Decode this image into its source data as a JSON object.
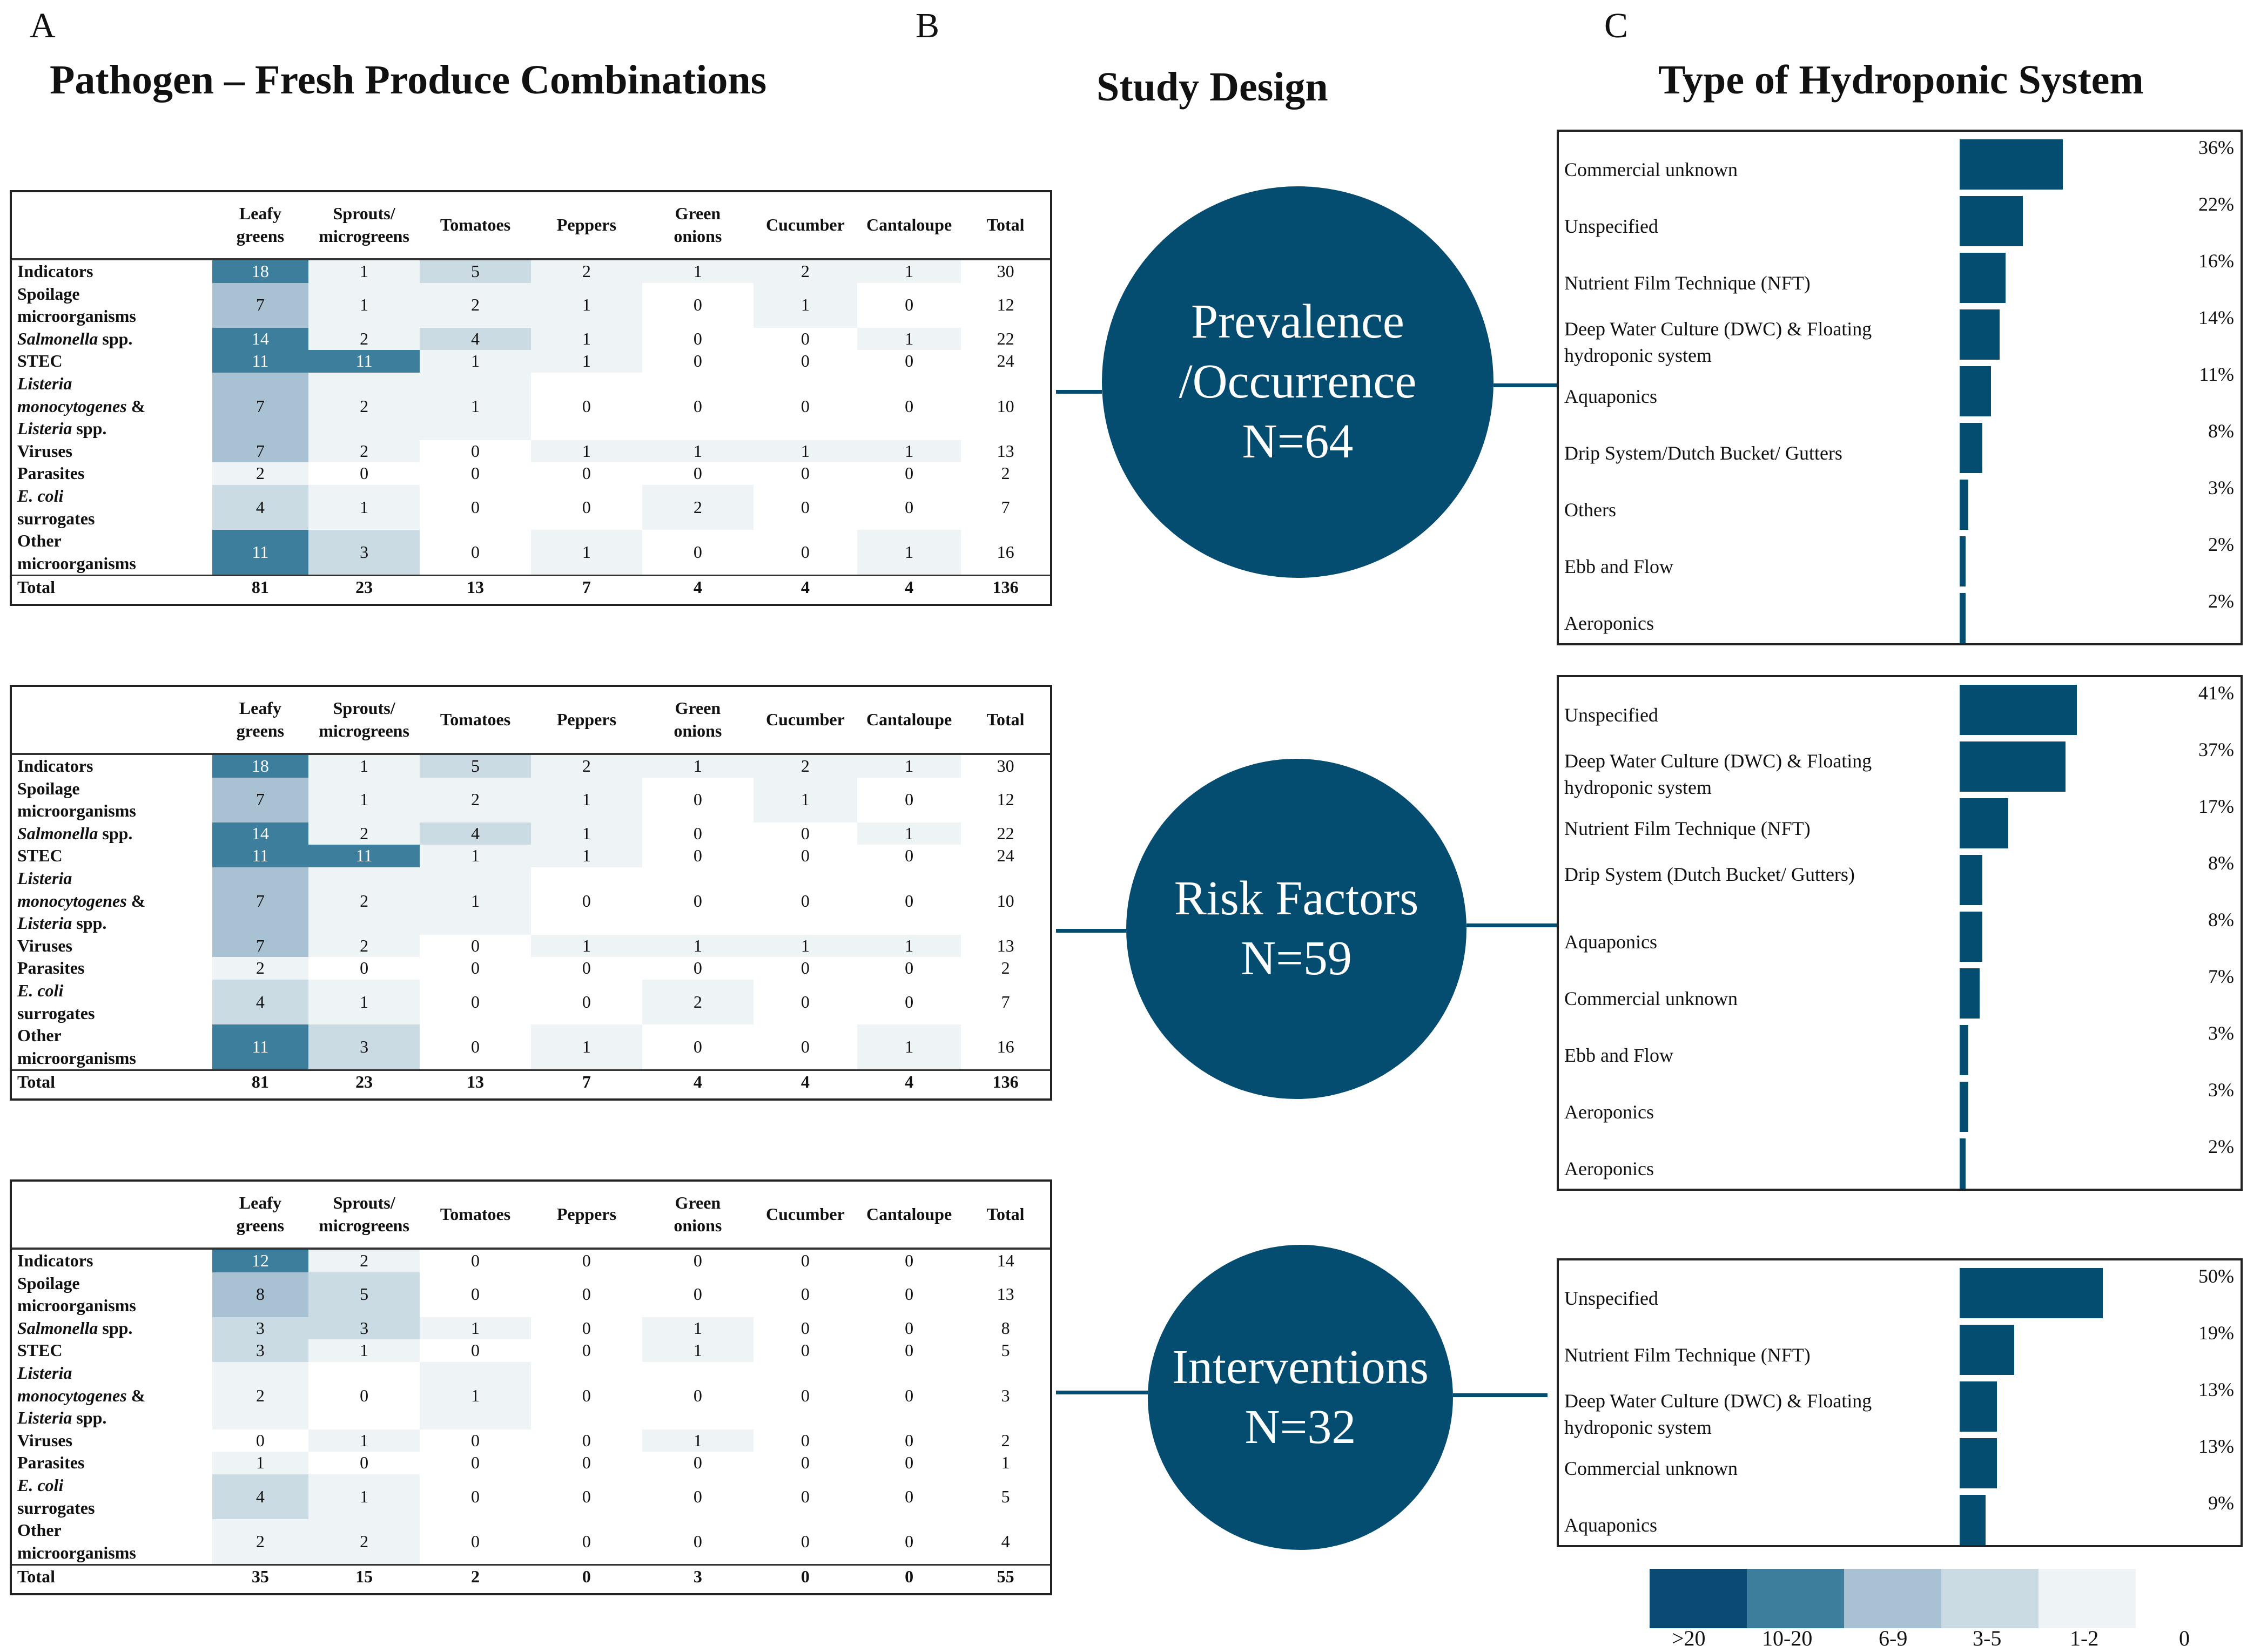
{
  "panels": {
    "a_letter": "A",
    "b_letter": "B",
    "c_letter": "C",
    "a_title": "Pathogen – Fresh Produce Combinations",
    "b_title": "Study Design",
    "c_title": "Type of Hydroponic System"
  },
  "colors": {
    "dark": "#044d70",
    "level_gt20": "#0a4a73",
    "level_10_20": "#3d7e9c",
    "level_6_9": "#a9c2d3",
    "level_3_5": "#cbdbe3",
    "level_1_2": "#eef3f6",
    "level_0": "#ffffff"
  },
  "legend": [
    ">20",
    "10-20",
    "6-9",
    "3-5",
    "1-2",
    "0"
  ],
  "chart_data": [
    {
      "type": "heatmap",
      "title": "Prevalence/Occurrence",
      "columns": [
        "Leafy greens",
        "Sprouts/ microgreens",
        "Tomatoes",
        "Peppers",
        "Green onions",
        "Cucumber",
        "Cantaloupe",
        "Total"
      ],
      "rows": [
        {
          "label": "Indicators",
          "values": [
            18,
            1,
            5,
            2,
            1,
            2,
            1,
            30
          ]
        },
        {
          "label": "Spoilage microorganisms",
          "values": [
            7,
            1,
            2,
            1,
            0,
            1,
            0,
            12
          ]
        },
        {
          "label": "Salmonella spp.",
          "values": [
            14,
            2,
            4,
            1,
            0,
            0,
            1,
            22
          ]
        },
        {
          "label": "STEC",
          "values": [
            11,
            11,
            1,
            1,
            0,
            0,
            0,
            24
          ]
        },
        {
          "label": "Listeria monocytogenes & Listeria spp.",
          "values": [
            7,
            2,
            1,
            0,
            0,
            0,
            0,
            10
          ]
        },
        {
          "label": "Viruses",
          "values": [
            7,
            2,
            0,
            1,
            1,
            1,
            1,
            13
          ]
        },
        {
          "label": "Parasites",
          "values": [
            2,
            0,
            0,
            0,
            0,
            0,
            0,
            2
          ]
        },
        {
          "label": "E. coli surrogates",
          "values": [
            4,
            1,
            0,
            0,
            2,
            0,
            0,
            7
          ]
        },
        {
          "label": "Other microorganisms",
          "values": [
            11,
            3,
            0,
            1,
            0,
            0,
            1,
            16
          ]
        },
        {
          "label": "Total",
          "values": [
            81,
            23,
            13,
            7,
            4,
            4,
            4,
            136
          ]
        }
      ]
    },
    {
      "type": "heatmap",
      "title": "Risk Factors",
      "columns": [
        "Leafy greens",
        "Sprouts/ microgreens",
        "Tomatoes",
        "Peppers",
        "Green onions",
        "Cucumber",
        "Cantaloupe",
        "Total"
      ],
      "rows": [
        {
          "label": "Indicators",
          "values": [
            18,
            1,
            5,
            2,
            1,
            2,
            1,
            30
          ]
        },
        {
          "label": "Spoilage microorganisms",
          "values": [
            7,
            1,
            2,
            1,
            0,
            1,
            0,
            12
          ]
        },
        {
          "label": "Salmonella spp.",
          "values": [
            14,
            2,
            4,
            1,
            0,
            0,
            1,
            22
          ]
        },
        {
          "label": "STEC",
          "values": [
            11,
            11,
            1,
            1,
            0,
            0,
            0,
            24
          ]
        },
        {
          "label": "Listeria monocytogenes & Listeria spp.",
          "values": [
            7,
            2,
            1,
            0,
            0,
            0,
            0,
            10
          ]
        },
        {
          "label": "Viruses",
          "values": [
            7,
            2,
            0,
            1,
            1,
            1,
            1,
            13
          ]
        },
        {
          "label": "Parasites",
          "values": [
            2,
            0,
            0,
            0,
            0,
            0,
            0,
            2
          ]
        },
        {
          "label": "E. coli surrogates",
          "values": [
            4,
            1,
            0,
            0,
            2,
            0,
            0,
            7
          ]
        },
        {
          "label": "Other microorganisms",
          "values": [
            11,
            3,
            0,
            1,
            0,
            0,
            1,
            16
          ]
        },
        {
          "label": "Total",
          "values": [
            81,
            23,
            13,
            7,
            4,
            4,
            4,
            136
          ]
        }
      ]
    },
    {
      "type": "heatmap",
      "title": "Interventions",
      "columns": [
        "Leafy greens",
        "Sprouts/ microgreens",
        "Tomatoes",
        "Peppers",
        "Green onions",
        "Cucumber",
        "Cantaloupe",
        "Total"
      ],
      "rows": [
        {
          "label": "Indicators",
          "values": [
            12,
            2,
            0,
            0,
            0,
            0,
            0,
            14
          ]
        },
        {
          "label": "Spoilage microorganisms",
          "values": [
            8,
            5,
            0,
            0,
            0,
            0,
            0,
            13
          ]
        },
        {
          "label": "Salmonella spp.",
          "values": [
            3,
            3,
            1,
            0,
            1,
            0,
            0,
            8
          ]
        },
        {
          "label": "STEC",
          "values": [
            3,
            1,
            0,
            0,
            1,
            0,
            0,
            5
          ]
        },
        {
          "label": "Listeria monocytogenes & Listeria spp.",
          "values": [
            2,
            0,
            1,
            0,
            0,
            0,
            0,
            3
          ]
        },
        {
          "label": "Viruses",
          "values": [
            0,
            1,
            0,
            0,
            1,
            0,
            0,
            2
          ]
        },
        {
          "label": "Parasites",
          "values": [
            1,
            0,
            0,
            0,
            0,
            0,
            0,
            1
          ]
        },
        {
          "label": "E. coli surrogates",
          "values": [
            4,
            1,
            0,
            0,
            0,
            0,
            0,
            5
          ]
        },
        {
          "label": "Other microorganisms",
          "values": [
            2,
            2,
            0,
            0,
            0,
            0,
            0,
            4
          ]
        },
        {
          "label": "Total",
          "values": [
            35,
            15,
            2,
            0,
            3,
            0,
            0,
            55
          ]
        }
      ]
    },
    {
      "type": "bar",
      "title": "Prevalence/Occurrence",
      "categories": [
        "Commercial unknown",
        "Unspecified",
        "Nutrient Film Technique (NFT)",
        "Deep Water Culture (DWC) & Floating hydroponic system",
        "Aquaponics",
        "Drip System/Dutch Bucket/ Gutters",
        "Others",
        "Ebb and Flow",
        "Aeroponics"
      ],
      "values": [
        36,
        22,
        16,
        14,
        11,
        8,
        3,
        2,
        2
      ],
      "value_labels": [
        "36%",
        "22%",
        "16%",
        "14%",
        "11%",
        "8%",
        "3%",
        "2%",
        "2%"
      ]
    },
    {
      "type": "bar",
      "title": "Risk Factors",
      "categories": [
        "Unspecified",
        "Deep Water Culture (DWC) & Floating hydroponic system",
        "Nutrient Film Technique (NFT)",
        "Drip System (Dutch Bucket/ Gutters)",
        "Aquaponics",
        "Commercial unknown",
        "Ebb and Flow",
        "Aeroponics",
        "Aeroponics"
      ],
      "values": [
        41,
        37,
        17,
        8,
        8,
        7,
        3,
        3,
        2
      ],
      "value_labels": [
        "41%",
        "37%",
        "17%",
        "8%",
        "8%",
        "7%",
        "3%",
        "3%",
        "2%"
      ]
    },
    {
      "type": "bar",
      "title": "Interventions",
      "categories": [
        "Unspecified",
        "Nutrient Film Technique (NFT)",
        "Deep Water Culture (DWC) & Floating hydroponic system",
        "Commercial unknown",
        "Aquaponics"
      ],
      "values": [
        50,
        19,
        13,
        13,
        9
      ],
      "value_labels": [
        "50%",
        "19%",
        "13%",
        "13%",
        "9%"
      ]
    }
  ],
  "circles": [
    {
      "line1": "Prevalence",
      "line2": "/Occurrence",
      "n": "N=64"
    },
    {
      "line1": "Risk Factors",
      "line2": "",
      "n": "N=59"
    },
    {
      "line1": "Interventions",
      "line2": "",
      "n": "N=32"
    }
  ]
}
